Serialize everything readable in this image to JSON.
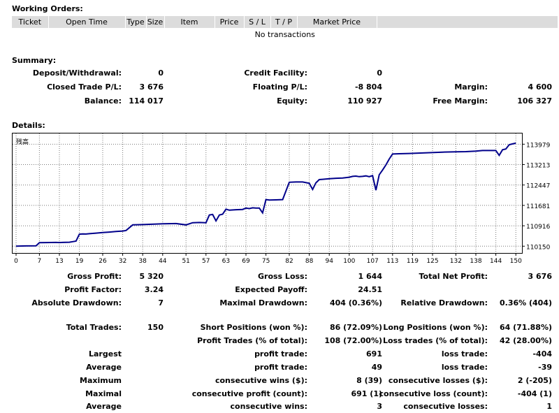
{
  "working_orders": {
    "title": "Working Orders:",
    "columns": [
      "Ticket",
      "Open Time",
      "Type",
      "Size",
      "Item",
      "Price",
      "S / L",
      "T / P",
      "Market Price",
      ""
    ],
    "empty_text": "No transactions"
  },
  "summary": {
    "title": "Summary:",
    "deposit_label": "Deposit/Withdrawal:",
    "deposit": "0",
    "credit_label": "Credit Facility:",
    "credit": "0",
    "closed_pl_label": "Closed Trade P/L:",
    "closed_pl": "3 676",
    "floating_pl_label": "Floating P/L:",
    "floating_pl": "-8 804",
    "margin_label": "Margin:",
    "margin": "4 600",
    "balance_label": "Balance:",
    "balance": "114 017",
    "equity_label": "Equity:",
    "equity": "110 927",
    "free_margin_label": "Free Margin:",
    "free_margin": "106 327"
  },
  "details": {
    "title": "Details:",
    "gross_profit_label": "Gross Profit:",
    "gross_profit": "5 320",
    "gross_loss_label": "Gross Loss:",
    "gross_loss": "1 644",
    "total_net_profit_label": "Total Net Profit:",
    "total_net_profit": "3 676",
    "profit_factor_label": "Profit Factor:",
    "profit_factor": "3.24",
    "expected_payoff_label": "Expected Payoff:",
    "expected_payoff": "24.51",
    "abs_drawdown_label": "Absolute Drawdown:",
    "abs_drawdown": "7",
    "max_drawdown_label": "Maximal Drawdown:",
    "max_drawdown": "404 (0.36%)",
    "rel_drawdown_label": "Relative Drawdown:",
    "rel_drawdown": "0.36% (404)",
    "total_trades_label": "Total Trades:",
    "total_trades": "150",
    "short_label": "Short Positions (won %):",
    "short": "86 (72.09%)",
    "long_label": "Long Positions (won %):",
    "long": "64 (71.88%)",
    "profit_trades_label": "Profit Trades (% of total):",
    "profit_trades": "108 (72.00%)",
    "loss_trades_label": "Loss trades (% of total):",
    "loss_trades": "42 (28.00%)",
    "rows": [
      {
        "a": "Largest",
        "b": "profit trade:",
        "c": "691",
        "d": "loss trade:",
        "e": "-404"
      },
      {
        "a": "Average",
        "b": "profit trade:",
        "c": "49",
        "d": "loss trade:",
        "e": "-39"
      },
      {
        "a": "Maximum",
        "b": "consecutive wins ($):",
        "c": "8 (39)",
        "d": "consecutive losses ($):",
        "e": "2 (-205)"
      },
      {
        "a": "Maximal",
        "b": "consecutive profit (count):",
        "c": "691 (1)",
        "d": "consecutive loss (count):",
        "e": "-404 (1)"
      },
      {
        "a": "Average",
        "b": "consecutive wins:",
        "c": "3",
        "d": "consecutive losses:",
        "e": "1"
      }
    ]
  },
  "chart_data": {
    "type": "line",
    "title": "残高",
    "x_ticks": [
      0,
      7,
      13,
      19,
      26,
      32,
      38,
      44,
      51,
      57,
      63,
      69,
      75,
      82,
      88,
      94,
      100,
      107,
      113,
      119,
      125,
      132,
      138,
      144,
      150
    ],
    "y_ticks": [
      110150,
      110916,
      111681,
      112447,
      113213,
      113979
    ],
    "xlim": [
      0,
      151
    ],
    "ylim": [
      110000,
      114250
    ],
    "series": [
      {
        "color": "#00008b",
        "x": [
          0,
          3,
          6,
          7,
          9,
          12,
          13,
          14,
          16,
          17,
          18,
          19,
          20,
          21,
          22,
          24,
          26,
          28,
          30,
          32,
          33,
          35,
          38,
          40,
          44,
          48,
          51,
          53,
          55,
          57,
          58,
          59,
          60,
          61,
          62,
          63,
          64,
          66,
          68,
          69,
          70,
          71,
          72,
          73,
          74,
          75,
          76,
          78,
          80,
          82,
          84,
          86,
          88,
          89,
          90,
          91,
          92,
          94,
          96,
          98,
          100,
          101,
          102,
          103,
          104,
          105,
          106,
          107,
          108,
          109,
          110,
          111,
          112,
          113,
          115,
          118,
          120,
          124,
          128,
          132,
          135,
          138,
          140,
          142,
          144,
          145,
          146,
          147,
          148,
          149,
          150
        ],
        "y": [
          110150,
          110160,
          110165,
          110280,
          110285,
          110290,
          110285,
          110290,
          110300,
          110320,
          110340,
          110600,
          110610,
          110605,
          110620,
          110640,
          110660,
          110680,
          110700,
          110720,
          110740,
          110950,
          110960,
          110970,
          110990,
          111000,
          110950,
          111030,
          111040,
          111030,
          111320,
          111340,
          111100,
          111320,
          111350,
          111540,
          111500,
          111520,
          111530,
          111580,
          111560,
          111590,
          111580,
          111580,
          111400,
          111900,
          111880,
          111890,
          111900,
          112550,
          112560,
          112560,
          112510,
          112280,
          112530,
          112650,
          112660,
          112680,
          112700,
          112710,
          112740,
          112770,
          112780,
          112760,
          112770,
          112790,
          112760,
          112800,
          112250,
          112830,
          113010,
          113200,
          113420,
          113610,
          113620,
          113630,
          113640,
          113660,
          113680,
          113690,
          113700,
          113720,
          113740,
          113740,
          113740,
          113560,
          113770,
          113800,
          113960,
          113990,
          114017
        ]
      }
    ]
  }
}
